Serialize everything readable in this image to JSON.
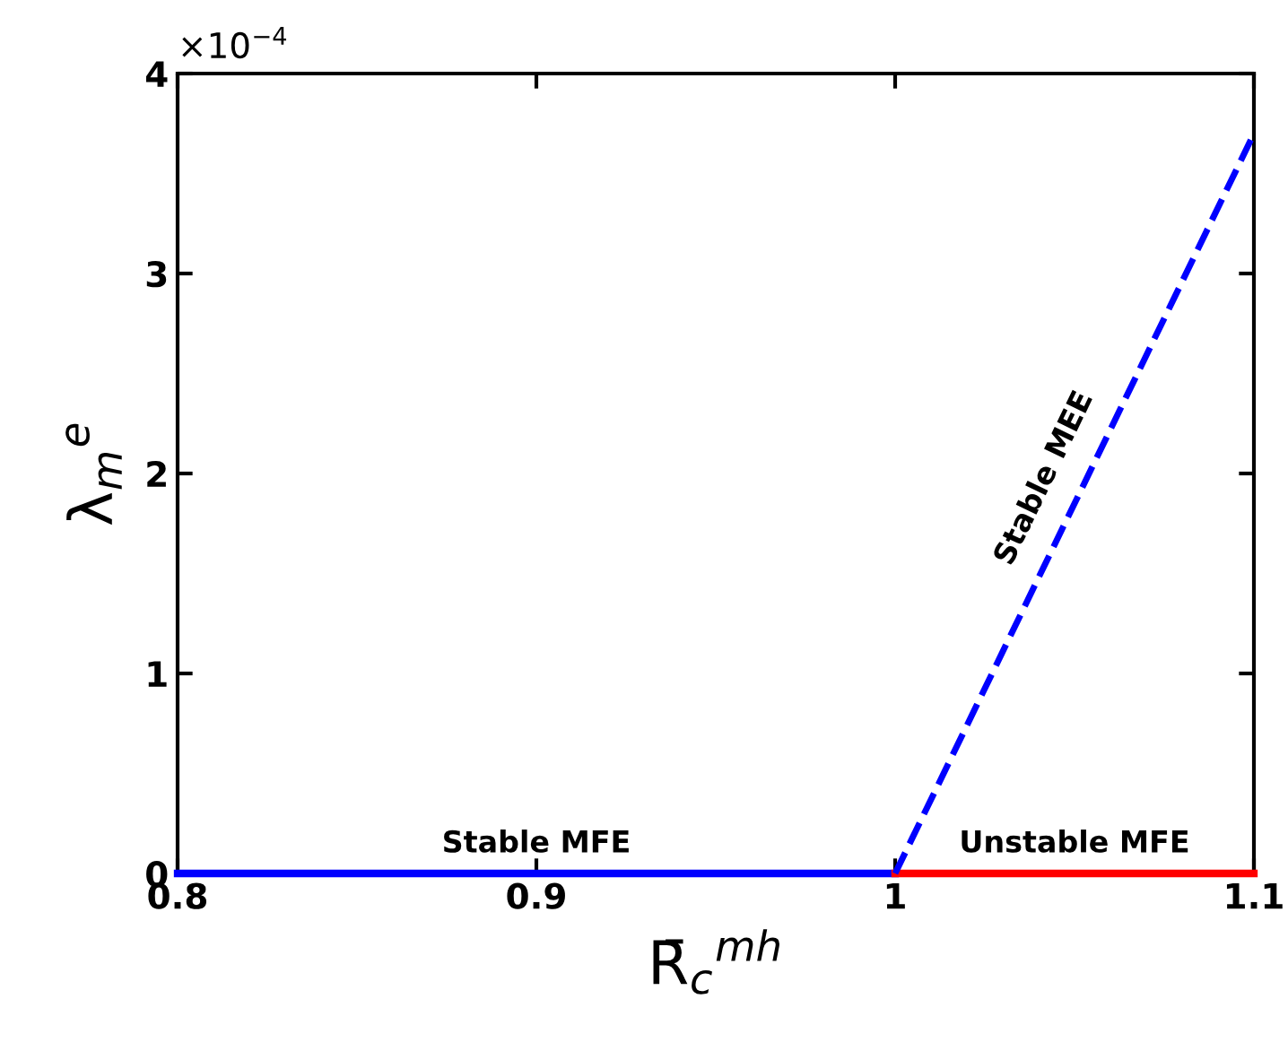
{
  "chart_data": {
    "type": "line",
    "xlabel": "R̄$_{c}$$^{mh}$",
    "ylabel": "λ$_{m}$$^{e}$",
    "annotations": [
      "×10$^{−4}$"
    ],
    "xlim": [
      0.8,
      1.1
    ],
    "xticks": [
      0.8,
      0.9,
      {
        "value": 1,
        "label": "1"
      },
      1.1
    ],
    "ylim": [
      0,
      4
    ],
    "yticks": [
      0,
      1,
      2,
      3,
      4
    ],
    "grid": false,
    "legend": false,
    "series": [
      {
        "name": "Stable MFE",
        "color": "#0000ff",
        "x": [
          0.8,
          1.0
        ],
        "values": [
          0,
          0
        ],
        "line_style": "solid"
      },
      {
        "name": "Unstable MFE",
        "color": "#ff0000",
        "x": [
          1.0,
          1.1
        ],
        "values": [
          0,
          0
        ],
        "line_style": "solid"
      },
      {
        "name": "Stable MEE",
        "color": "#0000ff",
        "x": [
          1.0,
          1.1
        ],
        "values": [
          0,
          3.7
        ],
        "line_style": "dashed"
      }
    ]
  }
}
